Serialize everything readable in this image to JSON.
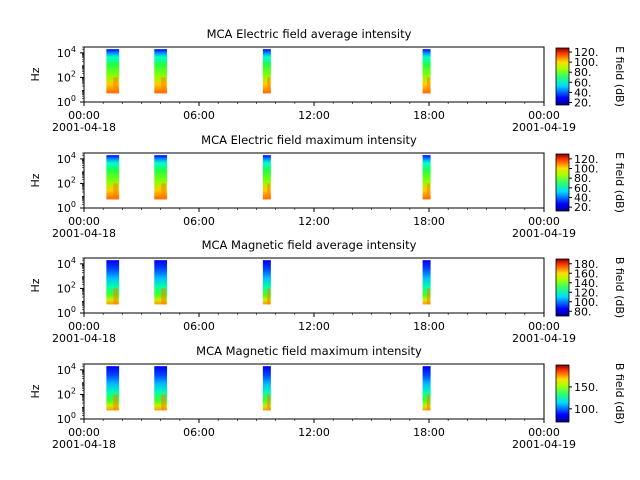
{
  "chart_data": [
    {
      "type": "heatmap",
      "title": "MCA  Electric field average intensity",
      "ylabel": "Hz",
      "ylim": [
        1,
        30000
      ],
      "yscale": "log",
      "y_ticks": [
        {
          "base": "10",
          "exp": "0"
        },
        {
          "base": "10",
          "exp": "2"
        },
        {
          "base": "10",
          "exp": "4"
        }
      ],
      "x_ticks": [
        "00:00",
        "06:00",
        "12:00",
        "18:00",
        "00:00"
      ],
      "x_dates": [
        "2001-04-18",
        "2001-04-19"
      ],
      "xlim": [
        "2001-04-18 00:00",
        "2001-04-19 00:00"
      ],
      "colorbar": {
        "label": "E field (dB)",
        "range": [
          15,
          128
        ],
        "ticks": [
          "20.",
          "40.",
          "60.",
          "80.",
          "100.",
          "120."
        ],
        "tick_values": [
          20,
          40,
          60,
          80,
          100,
          120
        ]
      },
      "bursts": [
        {
          "start": "01:10",
          "end": "01:50",
          "freq_range": [
            5,
            20000
          ]
        },
        {
          "start": "03:40",
          "end": "04:20",
          "freq_range": [
            5,
            20000
          ]
        },
        {
          "start": "09:20",
          "end": "09:45",
          "freq_range": [
            5,
            20000
          ]
        },
        {
          "start": "17:40",
          "end": "18:05",
          "freq_range": [
            5,
            20000
          ]
        }
      ],
      "style": "electric"
    },
    {
      "type": "heatmap",
      "title": "MCA  Electric field maximum intensity",
      "ylabel": "Hz",
      "ylim": [
        1,
        30000
      ],
      "yscale": "log",
      "y_ticks": [
        {
          "base": "10",
          "exp": "0"
        },
        {
          "base": "10",
          "exp": "2"
        },
        {
          "base": "10",
          "exp": "4"
        }
      ],
      "x_ticks": [
        "00:00",
        "06:00",
        "12:00",
        "18:00",
        "00:00"
      ],
      "x_dates": [
        "2001-04-18",
        "2001-04-19"
      ],
      "xlim": [
        "2001-04-18 00:00",
        "2001-04-19 00:00"
      ],
      "colorbar": {
        "label": "E field (dB)",
        "range": [
          12,
          130
        ],
        "ticks": [
          "20.",
          "40.",
          "60.",
          "80.",
          "100.",
          "120."
        ],
        "tick_values": [
          20,
          40,
          60,
          80,
          100,
          120
        ]
      },
      "bursts": [
        {
          "start": "01:10",
          "end": "01:50",
          "freq_range": [
            5,
            20000
          ]
        },
        {
          "start": "03:40",
          "end": "04:20",
          "freq_range": [
            5,
            20000
          ]
        },
        {
          "start": "09:20",
          "end": "09:45",
          "freq_range": [
            5,
            20000
          ]
        },
        {
          "start": "17:40",
          "end": "18:05",
          "freq_range": [
            5,
            20000
          ]
        }
      ],
      "style": "electric"
    },
    {
      "type": "heatmap",
      "title": "MCA  Magnetic field average intensity",
      "ylabel": "Hz",
      "ylim": [
        1,
        30000
      ],
      "yscale": "log",
      "y_ticks": [
        {
          "base": "10",
          "exp": "0"
        },
        {
          "base": "10",
          "exp": "2"
        },
        {
          "base": "10",
          "exp": "4"
        }
      ],
      "x_ticks": [
        "00:00",
        "06:00",
        "12:00",
        "18:00",
        "00:00"
      ],
      "x_dates": [
        "2001-04-18",
        "2001-04-19"
      ],
      "xlim": [
        "2001-04-18 00:00",
        "2001-04-19 00:00"
      ],
      "colorbar": {
        "label": "B field (dB)",
        "range": [
          70,
          190
        ],
        "ticks": [
          "80.",
          "100.",
          "120.",
          "140.",
          "160.",
          "180."
        ],
        "tick_values": [
          80,
          100,
          120,
          140,
          160,
          180
        ]
      },
      "bursts": [
        {
          "start": "01:10",
          "end": "01:50",
          "freq_range": [
            5,
            20000
          ]
        },
        {
          "start": "03:40",
          "end": "04:20",
          "freq_range": [
            5,
            20000
          ]
        },
        {
          "start": "09:20",
          "end": "09:45",
          "freq_range": [
            5,
            20000
          ]
        },
        {
          "start": "17:40",
          "end": "18:05",
          "freq_range": [
            5,
            20000
          ]
        }
      ],
      "style": "magnetic"
    },
    {
      "type": "heatmap",
      "title": "MCA  Magnetic field maximum intensity",
      "ylabel": "Hz",
      "ylim": [
        1,
        30000
      ],
      "yscale": "log",
      "y_ticks": [
        {
          "base": "10",
          "exp": "0"
        },
        {
          "base": "10",
          "exp": "2"
        },
        {
          "base": "10",
          "exp": "4"
        }
      ],
      "x_ticks": [
        "00:00",
        "06:00",
        "12:00",
        "18:00",
        "00:00"
      ],
      "x_dates": [
        "2001-04-18",
        "2001-04-19"
      ],
      "xlim": [
        "2001-04-18 00:00",
        "2001-04-19 00:00"
      ],
      "colorbar": {
        "label": "B field (dB)",
        "range": [
          70,
          200
        ],
        "ticks": [
          "100.",
          "150."
        ],
        "tick_values": [
          100,
          150
        ]
      },
      "bursts": [
        {
          "start": "01:10",
          "end": "01:50",
          "freq_range": [
            5,
            20000
          ]
        },
        {
          "start": "03:40",
          "end": "04:20",
          "freq_range": [
            5,
            20000
          ]
        },
        {
          "start": "09:20",
          "end": "09:45",
          "freq_range": [
            5,
            20000
          ]
        },
        {
          "start": "17:40",
          "end": "18:05",
          "freq_range": [
            5,
            20000
          ]
        }
      ],
      "style": "magnetic"
    }
  ]
}
